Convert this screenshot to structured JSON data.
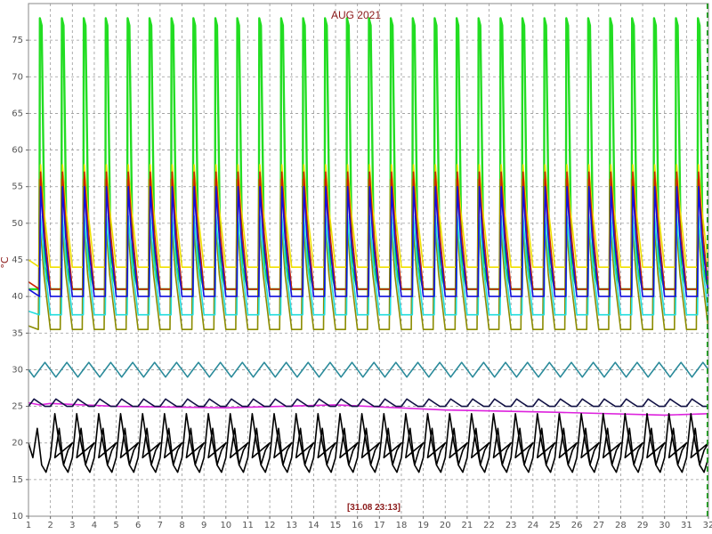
{
  "chart_data": {
    "type": "line",
    "title": "AUG 2021",
    "ylabel": "°C",
    "timestamp": "[31.08 23:13]",
    "xlim": [
      1,
      32
    ],
    "ylim": [
      10,
      80
    ],
    "xticks": [
      "1",
      "2",
      "3",
      "4",
      "5",
      "6",
      "7",
      "8",
      "9",
      "10",
      "11",
      "12",
      "13",
      "14",
      "15",
      "16",
      "17",
      "18",
      "19",
      "20",
      "21",
      "22",
      "23",
      "24",
      "25",
      "26",
      "27",
      "28",
      "29",
      "30",
      "31",
      "32"
    ],
    "yticks": [
      "10",
      "15",
      "20",
      "25",
      "30",
      "35",
      "40",
      "45",
      "50",
      "55",
      "60",
      "65",
      "70",
      "75"
    ],
    "grid": true,
    "colors": {
      "green": "#22dd22",
      "olive": "#8b8b00",
      "yellow": "#f0e000",
      "red": "#cc2200",
      "blue": "#1111dd",
      "cyan": "#22dddd",
      "teal": "#2a8a9a",
      "magenta": "#dd22dd",
      "navy": "#111144",
      "black": "#000000",
      "marker": "#009900"
    },
    "series": [
      {
        "color_key": "green",
        "x": [
          1.0,
          1.5,
          1.52,
          1.6,
          1.75,
          2.0
        ],
        "y": [
          41,
          41,
          78,
          77,
          44,
          41
        ],
        "period": 1
      },
      {
        "color_key": "olive",
        "x": [
          1.0,
          1.45,
          1.5,
          1.55,
          1.7,
          2.0
        ],
        "y": [
          36,
          35.5,
          56,
          49,
          43,
          35.5
        ],
        "period": 1
      },
      {
        "color_key": "yellow",
        "x": [
          1.0,
          1.5,
          1.55,
          1.7,
          2.0
        ],
        "y": [
          45,
          44,
          58,
          52,
          44
        ],
        "period": 1
      },
      {
        "color_key": "red",
        "x": [
          1.0,
          1.5,
          1.55,
          1.7,
          2.0
        ],
        "y": [
          42,
          41,
          57,
          50,
          41
        ],
        "period": 1
      },
      {
        "color_key": "cyan",
        "x": [
          1.0,
          1.5,
          1.55,
          1.7,
          2.0
        ],
        "y": [
          38,
          37.5,
          51,
          45,
          37.5
        ],
        "period": 1
      },
      {
        "color_key": "blue",
        "x": [
          1.0,
          1.5,
          1.55,
          1.7,
          2.0
        ],
        "y": [
          41,
          40,
          55,
          48,
          40
        ],
        "period": 1
      },
      {
        "color_key": "teal",
        "x": [
          1.0,
          1.25,
          1.5,
          1.75,
          2.0
        ],
        "y": [
          30,
          29,
          30,
          31,
          30
        ],
        "period": 1
      },
      {
        "color_key": "magenta",
        "x": [
          1.0,
          1.5,
          2.0,
          5.0,
          10.0,
          15.0,
          20.0,
          25.0,
          30.0,
          32.0
        ],
        "y": [
          25.5,
          25.2,
          25.4,
          25.0,
          24.8,
          25.2,
          24.5,
          24.2,
          23.8,
          24.0
        ]
      },
      {
        "color_key": "navy",
        "x": [
          1.0,
          1.25,
          1.5,
          1.75,
          2.0
        ],
        "y": [
          25,
          26,
          25.5,
          25,
          25
        ],
        "period": 1
      },
      {
        "color_key": "black",
        "x": [
          1.0,
          1.2,
          1.4,
          1.6,
          1.8,
          2.0,
          2.2,
          2.4,
          2.6,
          2.8,
          3.0
        ],
        "y": [
          20,
          18,
          22,
          17,
          16,
          18,
          24,
          20,
          17,
          19,
          20
        ],
        "period": 1
      }
    ],
    "markers": [
      {
        "x": 31.95,
        "label": ""
      }
    ]
  }
}
